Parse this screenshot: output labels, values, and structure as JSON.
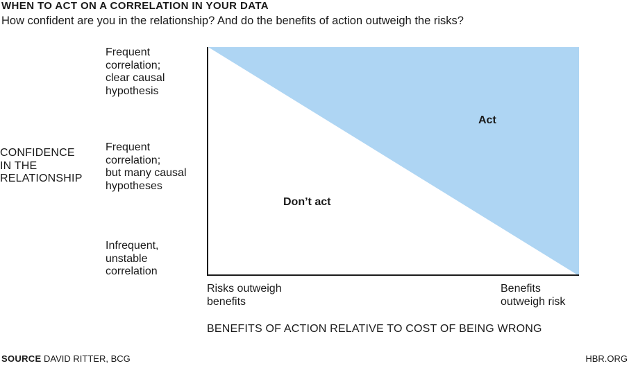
{
  "header": {
    "title": "WHEN TO ACT ON A CORRELATION IN YOUR DATA",
    "subtitle": "How confident are you in the relationship? And do the benefits of action outweigh the risks?"
  },
  "y_axis": {
    "label_lines": [
      "CONFIDENCE",
      "IN THE",
      "RELATIONSHIP"
    ],
    "levels": [
      {
        "lines": [
          "Frequent",
          "correlation;",
          "clear causal",
          "hypothesis"
        ]
      },
      {
        "lines": [
          "Frequent",
          "correlation;",
          "but many causal",
          "hypotheses"
        ]
      },
      {
        "lines": [
          "Infrequent,",
          "unstable",
          "correlation"
        ]
      }
    ]
  },
  "x_axis": {
    "label": "BENEFITS OF ACTION RELATIVE TO COST OF BEING WRONG",
    "left_end_lines": [
      "Risks outweigh",
      "benefits"
    ],
    "right_end_lines": [
      "Benefits",
      "outweigh risk"
    ]
  },
  "regions": {
    "act": "Act",
    "dont_act": "Don’t act",
    "act_color": "#aed5f3",
    "axis_color": "#1a1a1a"
  },
  "footer": {
    "source_label": "SOURCE",
    "source_text": "DAVID RITTER, BCG",
    "brand": "HBR.ORG"
  }
}
